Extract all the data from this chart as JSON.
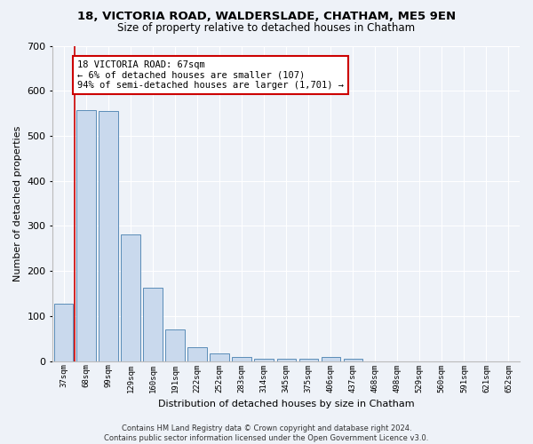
{
  "title_line1": "18, VICTORIA ROAD, WALDERSLADE, CHATHAM, ME5 9EN",
  "title_line2": "Size of property relative to detached houses in Chatham",
  "xlabel": "Distribution of detached houses by size in Chatham",
  "ylabel": "Number of detached properties",
  "categories": [
    "37sqm",
    "68sqm",
    "99sqm",
    "129sqm",
    "160sqm",
    "191sqm",
    "222sqm",
    "252sqm",
    "283sqm",
    "314sqm",
    "345sqm",
    "375sqm",
    "406sqm",
    "437sqm",
    "468sqm",
    "498sqm",
    "529sqm",
    "560sqm",
    "591sqm",
    "621sqm",
    "652sqm"
  ],
  "values": [
    128,
    558,
    555,
    281,
    163,
    71,
    31,
    18,
    9,
    5,
    5,
    5,
    9,
    6,
    0,
    0,
    0,
    0,
    0,
    0,
    0
  ],
  "bar_color": "#c9d9ed",
  "bar_edge_color": "#5b8db8",
  "annotation_text": "18 VICTORIA ROAD: 67sqm\n← 6% of detached houses are smaller (107)\n94% of semi-detached houses are larger (1,701) →",
  "annotation_box_color": "#ffffff",
  "annotation_box_edge_color": "#cc0000",
  "annotation_text_color": "#000000",
  "highlight_line_color": "#cc0000",
  "footer_line1": "Contains HM Land Registry data © Crown copyright and database right 2024.",
  "footer_line2": "Contains public sector information licensed under the Open Government Licence v3.0.",
  "background_color": "#eef2f8",
  "plot_background_color": "#eef2f8",
  "grid_color": "#ffffff",
  "ylim": [
    0,
    700
  ],
  "yticks": [
    0,
    100,
    200,
    300,
    400,
    500,
    600,
    700
  ]
}
